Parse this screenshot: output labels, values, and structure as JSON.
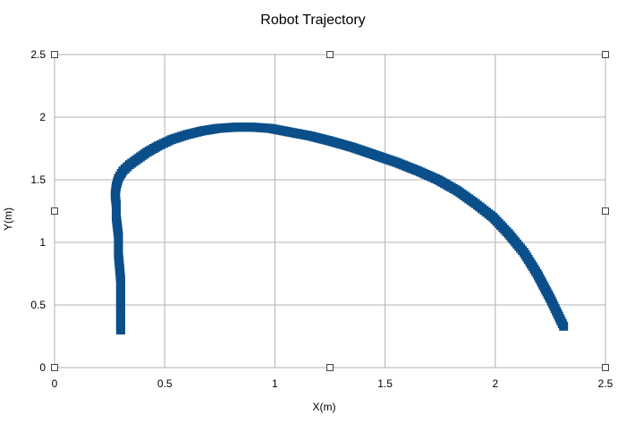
{
  "chart_data": {
    "type": "scatter",
    "title": "Robot Trajectory",
    "xlabel": "X(m)",
    "ylabel": "Y(m)",
    "xlim": [
      0,
      2.5
    ],
    "ylim": [
      0,
      2.5
    ],
    "xticks": [
      "0",
      "0.5",
      "1",
      "1.5",
      "2",
      "2.5"
    ],
    "yticks": [
      "0",
      "0.5",
      "1",
      "1.5",
      "2",
      "2.5"
    ],
    "grid": true,
    "marker": "square",
    "color": "#0b4f8a",
    "series": [
      {
        "x": [
          0.3,
          0.3,
          0.3,
          0.29,
          0.29,
          0.28,
          0.28,
          0.275,
          0.28,
          0.29,
          0.31,
          0.34,
          0.38,
          0.42,
          0.47,
          0.53,
          0.6,
          0.67,
          0.74,
          0.82,
          0.9,
          0.98,
          1.07,
          1.16,
          1.25,
          1.35,
          1.45,
          1.55,
          1.65,
          1.74,
          1.83,
          1.91,
          1.99,
          2.06,
          2.13,
          2.19,
          2.25,
          2.31
        ],
        "y": [
          0.3,
          0.5,
          0.7,
          0.9,
          1.05,
          1.2,
          1.3,
          1.38,
          1.45,
          1.51,
          1.57,
          1.62,
          1.67,
          1.72,
          1.77,
          1.82,
          1.86,
          1.89,
          1.91,
          1.92,
          1.92,
          1.91,
          1.88,
          1.85,
          1.81,
          1.76,
          1.7,
          1.64,
          1.57,
          1.5,
          1.41,
          1.31,
          1.2,
          1.07,
          0.92,
          0.75,
          0.55,
          0.33
        ]
      }
    ]
  }
}
